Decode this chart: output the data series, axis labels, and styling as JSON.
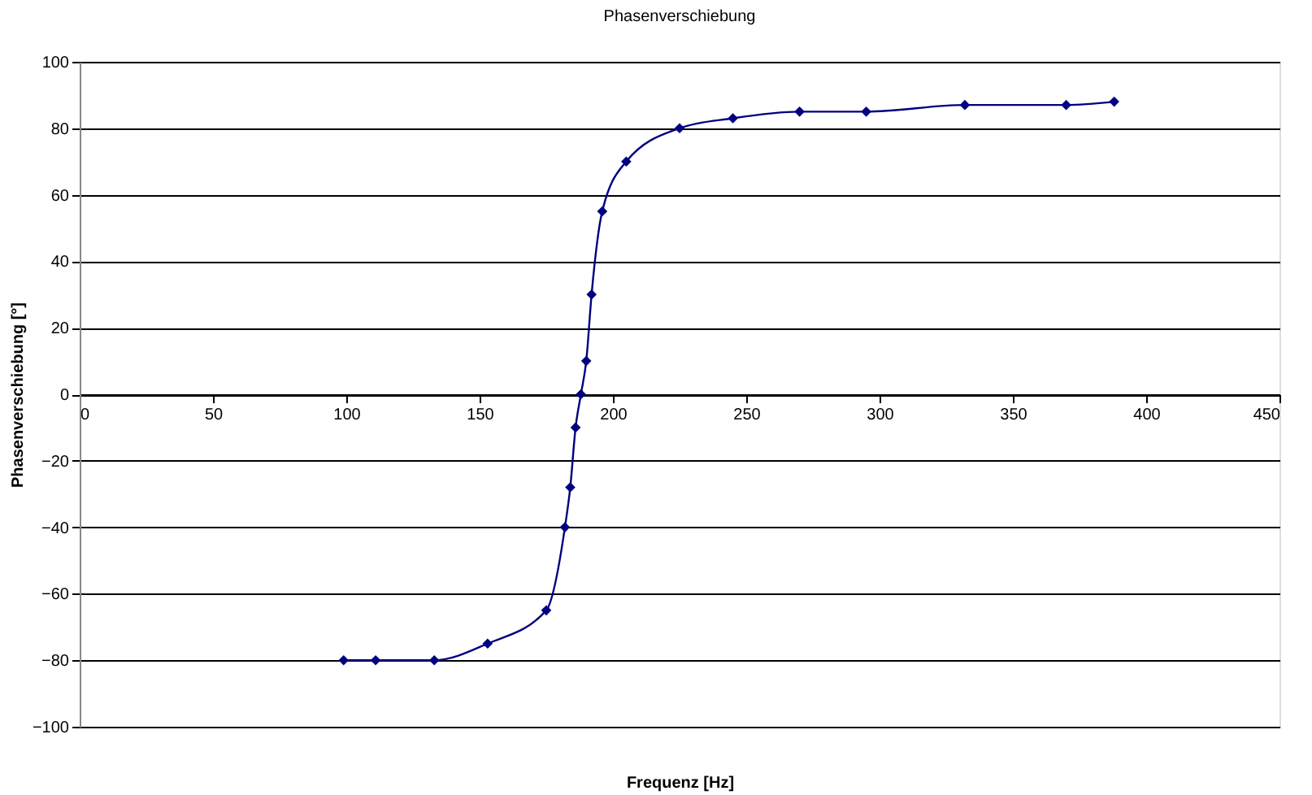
{
  "chart_data": {
    "type": "line",
    "title": "Phasenverschiebung",
    "xlabel": "Frequenz [Hz]",
    "ylabel": "Phasenverschiebung [°]",
    "x": [
      99,
      111,
      133,
      153,
      175,
      182,
      184,
      186,
      188,
      190,
      192,
      196,
      205,
      225,
      245,
      270,
      295,
      332,
      370,
      388
    ],
    "series": [
      {
        "color": "#000080",
        "values": [
          -80,
          -80,
          -80,
          -75,
          -65,
          -40,
          -28,
          -10,
          0,
          10,
          30,
          55,
          70,
          80,
          83,
          85,
          85,
          87,
          87,
          88
        ]
      }
    ],
    "xlim": [
      0,
      450
    ],
    "xticks": [
      0,
      50,
      100,
      150,
      200,
      250,
      300,
      350,
      400,
      450
    ],
    "ylim": [
      -100,
      100
    ],
    "yticks": [
      -100,
      -80,
      -60,
      -40,
      -20,
      0,
      20,
      40,
      60,
      80,
      100
    ],
    "grid": "y",
    "marker": "diamond",
    "line_style": "solid"
  }
}
